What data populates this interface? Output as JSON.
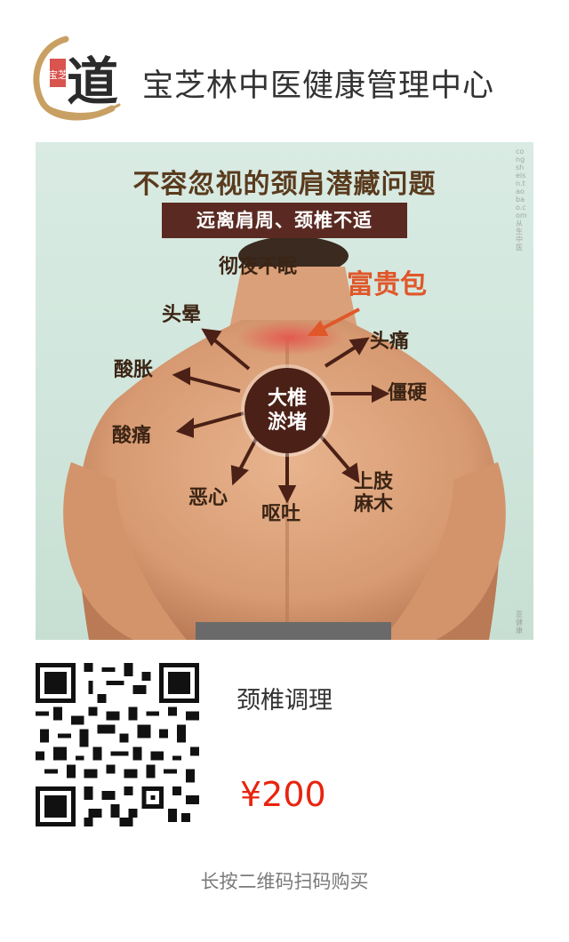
{
  "header": {
    "brand_name": "宝芝林中医健康管理中心",
    "logo_text": "道",
    "logo_seal_text": "宝芝"
  },
  "poster": {
    "title": "不容忽视的颈肩潜藏问题",
    "subtitle": "远离肩周、颈椎不适",
    "center_label": "大椎\n淤堵",
    "callout_label": "富贵包",
    "symptoms": [
      "彻夜不眠",
      "头晕",
      "头痛",
      "酸胀",
      "僵硬",
      "酸痛",
      "恶心",
      "呕吐",
      "上肢\n麻木"
    ],
    "watermark_side": "congsheisn.taobao.com 从生中医",
    "watermark_bottom": "亚健康"
  },
  "product": {
    "name": "颈椎调理",
    "price": "¥200"
  },
  "footer": {
    "hint": "长按二维码扫码购买"
  },
  "colors": {
    "brand_gold": "#c9a063",
    "title_brown": "#5a3b1e",
    "banner_bg": "#5a2a22",
    "callout": "#e0572a",
    "price": "#e8240f"
  }
}
